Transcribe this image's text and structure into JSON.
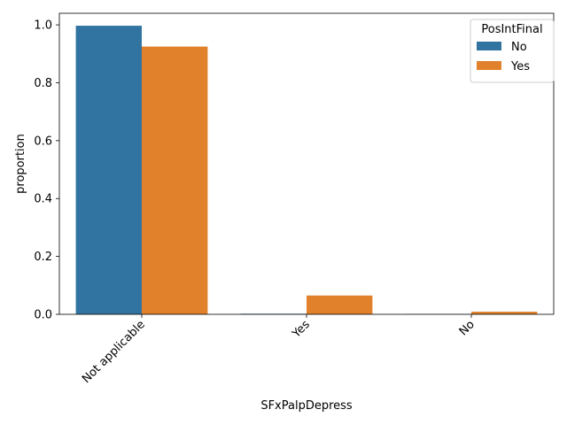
{
  "chart_data": {
    "type": "bar",
    "xlabel": "SFxPalpDepress",
    "ylabel": "proportion",
    "categories": [
      "Not applicable",
      "Yes",
      "No"
    ],
    "series": [
      {
        "name": "No",
        "color": "#3274a1",
        "values": [
          0.997,
          0.002,
          0.001
        ]
      },
      {
        "name": "Yes",
        "color": "#e1812c",
        "values": [
          0.925,
          0.065,
          0.009
        ]
      }
    ],
    "ylim": [
      0,
      1.04
    ],
    "yticks": [
      "0.0",
      "0.2",
      "0.4",
      "0.6",
      "0.8",
      "1.0"
    ],
    "legend": {
      "title": "PosIntFinal",
      "placement": "top-right"
    },
    "grid": false
  }
}
